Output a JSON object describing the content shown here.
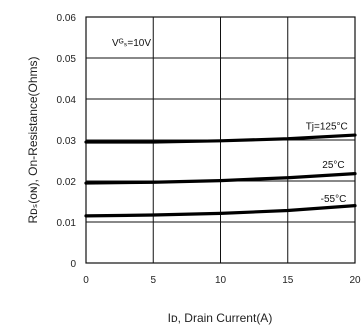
{
  "chart_data": {
    "type": "line",
    "xlabel": "Iᴅ, Drain Current(A)",
    "ylabel": "Rᴅₛ(ᴏɴ), On-Resistance(Ohms)",
    "xlim": [
      0,
      20
    ],
    "ylim": [
      0,
      0.06
    ],
    "grid": true,
    "x_ticks": [
      "0",
      "5",
      "10",
      "15",
      "20"
    ],
    "y_ticks": [
      "0",
      "0.01",
      "0.02",
      "0.03",
      "0.04",
      "0.05",
      "0.06"
    ],
    "condition_label": "Vᴳₛ=10V",
    "series": [
      {
        "name": "Tj=125°C",
        "x": [
          0,
          5,
          10,
          15,
          20
        ],
        "values": [
          0.0295,
          0.0295,
          0.0298,
          0.0303,
          0.0312
        ]
      },
      {
        "name": "25°C",
        "x": [
          0,
          5,
          10,
          15,
          20
        ],
        "values": [
          0.0195,
          0.0197,
          0.0201,
          0.0208,
          0.0218
        ]
      },
      {
        "name": "-55°C",
        "x": [
          0,
          5,
          10,
          15,
          20
        ],
        "values": [
          0.0115,
          0.0117,
          0.0121,
          0.0128,
          0.014
        ]
      }
    ]
  }
}
